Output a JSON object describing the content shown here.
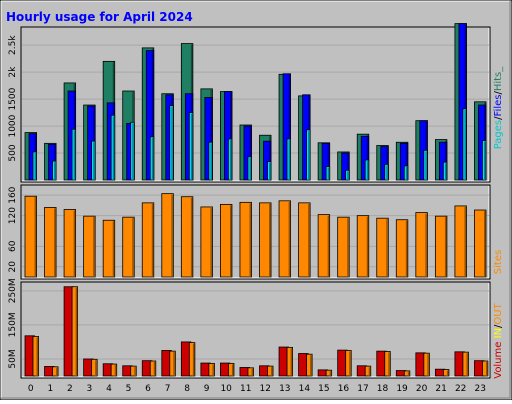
{
  "chart_data": {
    "title": "Hourly usage for April 2024",
    "type": "bar",
    "categories": [
      "0",
      "1",
      "2",
      "3",
      "4",
      "5",
      "6",
      "7",
      "8",
      "9",
      "10",
      "11",
      "12",
      "13",
      "14",
      "15",
      "16",
      "17",
      "18",
      "19",
      "20",
      "21",
      "22",
      "23"
    ],
    "panels": [
      {
        "name": "requests",
        "ylim": [
          0,
          2800
        ],
        "ytick_labels": [
          "2.5k",
          "2k",
          "1500",
          "1000",
          "500"
        ],
        "ytick_values": [
          2500,
          2000,
          1500,
          1000,
          500
        ],
        "series": [
          {
            "name": "Hits",
            "color": "#1f7f62",
            "values": [
              880,
              680,
              1800,
              1390,
              2200,
              1650,
              2450,
              1600,
              2530,
              1690,
              1640,
              1020,
              830,
              1960,
              1560,
              690,
              520,
              850,
              640,
              700,
              1100,
              750,
              2900,
              1450
            ]
          },
          {
            "name": "Files",
            "color": "#0000ff",
            "values": [
              860,
              660,
              1650,
              1370,
              1430,
              1050,
              2400,
              1580,
              1600,
              1530,
              1640,
              1000,
              720,
              1970,
              1580,
              680,
              500,
              810,
              620,
              680,
              1100,
              700,
              2900,
              1390
            ]
          },
          {
            "name": "Pages",
            "color": "#00e0ff",
            "values": [
              520,
              350,
              940,
              720,
              1200,
              1070,
              800,
              1380,
              1250,
              700,
              760,
              430,
              340,
              760,
              930,
              250,
              180,
              370,
              290,
              260,
              550,
              330,
              1320,
              730
            ]
          }
        ],
        "legend": [
          "Pages",
          "Files",
          "Hits"
        ]
      },
      {
        "name": "sites",
        "ylim": [
          0,
          176
        ],
        "ytick_labels": [
          "160",
          "120",
          "60",
          "20"
        ],
        "ytick_values": [
          160,
          120,
          60,
          20
        ],
        "series": [
          {
            "name": "Sites",
            "color": "#ff8800",
            "values": [
              158,
              136,
              132,
              119,
              111,
              117,
              145,
              163,
              157,
              137,
              142,
              146,
              145,
              149,
              145,
              122,
              117,
              120,
              115,
              112,
              126,
              119,
              139,
              131
            ]
          }
        ],
        "legend": [
          "Sites"
        ]
      },
      {
        "name": "volume",
        "ylim": [
          0,
          270
        ],
        "ytick_labels": [
          "250M",
          "150M",
          "50M"
        ],
        "ytick_values": [
          250,
          150,
          50
        ],
        "series": [
          {
            "name": "Volume",
            "color": "#cc0000",
            "values": [
              118,
              28,
              262,
              50,
              36,
              30,
              45,
              75,
              100,
              38,
              38,
              25,
              30,
              85,
              66,
              18,
              76,
              30,
              73,
              16,
              68,
              20,
              71,
              45
            ]
          },
          {
            "name": "IN",
            "color": "#ffff00",
            "values": [
              0,
              0,
              0,
              0,
              0,
              0,
              0,
              0,
              0,
              0,
              0,
              0,
              0,
              0,
              0,
              0,
              0,
              0,
              0,
              0,
              0,
              0,
              0,
              0
            ]
          },
          {
            "name": "OUT",
            "color": "#ff8800",
            "values": [
              116,
              27,
              262,
              49,
              35,
              29,
              44,
              73,
              98,
              37,
              37,
              24,
              29,
              84,
              64,
              17,
              75,
              29,
              72,
              15,
              67,
              19,
              70,
              44
            ]
          }
        ],
        "legend": [
          "Volume",
          "IN",
          "OUT"
        ]
      }
    ],
    "legend_entries": [
      {
        "text": "Pages",
        "color": "#00c8c8"
      },
      {
        "text": "/",
        "color": "#000000"
      },
      {
        "text": "Files",
        "color": "#0000ff"
      },
      {
        "text": "/",
        "color": "#000000"
      },
      {
        "text": "Hits_",
        "color": "#1f7f62"
      }
    ],
    "sites_label": {
      "text": "Sites",
      "color": "#ff8800"
    },
    "volume_legend_entries": [
      {
        "text": "Volume",
        "color": "#cc0000"
      },
      {
        "text": " ",
        "color": "#000000"
      },
      {
        "text": "IN",
        "color": "#ffff00"
      },
      {
        "text": "/",
        "color": "#000000"
      },
      {
        "text": "OUT",
        "color": "#ff8800"
      },
      {
        "text": " ",
        "color": "#000000"
      }
    ],
    "colors": {
      "title": "#0000ff",
      "background": "#c0c0c0",
      "plot_bg": "#c0c0c0"
    }
  }
}
